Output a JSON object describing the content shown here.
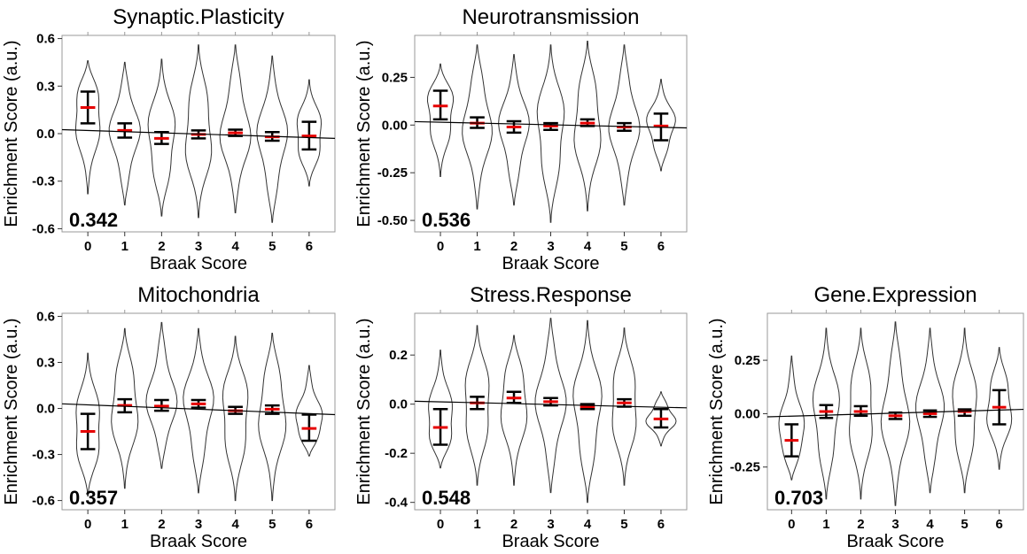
{
  "figure": {
    "xlabel": "Braak Score",
    "ylabel": "Enrichment Score (a.u.)"
  },
  "chart_data": [
    {
      "type": "violin",
      "title": "Synaptic.Plasticity",
      "xlabel": "Braak Score",
      "ylabel": "Enrichment Score (a.u.)",
      "ylim": [
        -0.62,
        0.62
      ],
      "yticks": [
        -0.6,
        -0.3,
        0.0,
        0.3,
        0.6
      ],
      "ytick_labels": [
        "-0.6",
        "-0.3",
        "0.0",
        "0.3",
        "0.6"
      ],
      "categories": [
        "0",
        "1",
        "2",
        "3",
        "4",
        "5",
        "6"
      ],
      "violin_min": [
        -0.38,
        -0.45,
        -0.52,
        -0.53,
        -0.5,
        -0.56,
        -0.33
      ],
      "violin_max": [
        0.46,
        0.45,
        0.47,
        0.56,
        0.56,
        0.49,
        0.34
      ],
      "means": [
        0.165,
        0.02,
        -0.03,
        -0.005,
        0.005,
        -0.02,
        -0.015
      ],
      "ci_low": [
        0.065,
        -0.025,
        -0.065,
        -0.03,
        -0.015,
        -0.045,
        -0.1
      ],
      "ci_high": [
        0.265,
        0.065,
        0.01,
        0.02,
        0.025,
        0.01,
        0.075
      ],
      "trend": [
        0.025,
        -0.03
      ],
      "annotation": "0.342",
      "grid": false
    },
    {
      "type": "violin",
      "title": "Neurotransmission",
      "xlabel": "Braak Score",
      "ylabel": "Enrichment Score (a.u.)",
      "ylim": [
        -0.56,
        0.47
      ],
      "yticks": [
        -0.5,
        -0.25,
        0.0,
        0.25
      ],
      "ytick_labels": [
        "-0.50",
        "-0.25",
        "0.00",
        "0.25"
      ],
      "categories": [
        "0",
        "1",
        "2",
        "3",
        "4",
        "5",
        "6"
      ],
      "violin_min": [
        -0.27,
        -0.44,
        -0.42,
        -0.51,
        -0.45,
        -0.42,
        -0.24
      ],
      "violin_max": [
        0.32,
        0.42,
        0.37,
        0.42,
        0.44,
        0.42,
        0.24
      ],
      "means": [
        0.1,
        0.01,
        -0.01,
        -0.005,
        0.01,
        -0.01,
        -0.005
      ],
      "ci_low": [
        0.03,
        -0.015,
        -0.04,
        -0.025,
        -0.005,
        -0.03,
        -0.08
      ],
      "ci_high": [
        0.18,
        0.04,
        0.02,
        0.01,
        0.03,
        0.01,
        0.06
      ],
      "trend": [
        0.018,
        -0.015
      ],
      "annotation": "0.536",
      "grid": false
    },
    {
      "type": "violin",
      "title": "Mitochondria",
      "xlabel": "Braak Score",
      "ylabel": "Enrichment Score (a.u.)",
      "ylim": [
        -0.66,
        0.62
      ],
      "yticks": [
        -0.6,
        -0.3,
        0.0,
        0.3,
        0.6
      ],
      "ytick_labels": [
        "-0.6",
        "-0.3",
        "0.0",
        "0.3",
        "0.6"
      ],
      "categories": [
        "0",
        "1",
        "2",
        "3",
        "4",
        "5",
        "6"
      ],
      "violin_min": [
        -0.57,
        -0.52,
        -0.39,
        -0.55,
        -0.6,
        -0.6,
        -0.31
      ],
      "violin_max": [
        0.36,
        0.52,
        0.56,
        0.52,
        0.47,
        0.49,
        0.28
      ],
      "means": [
        -0.15,
        0.02,
        0.015,
        0.03,
        -0.015,
        -0.005,
        -0.13
      ],
      "ci_low": [
        -0.265,
        -0.025,
        -0.015,
        0.005,
        -0.035,
        -0.035,
        -0.21
      ],
      "ci_high": [
        -0.035,
        0.06,
        0.055,
        0.055,
        0.01,
        0.02,
        -0.04
      ],
      "trend": [
        0.03,
        -0.04
      ],
      "annotation": "0.357",
      "grid": false
    },
    {
      "type": "violin",
      "title": "Stress.Response",
      "xlabel": "Braak Score",
      "ylabel": "Enrichment Score (a.u.)",
      "ylim": [
        -0.43,
        0.37
      ],
      "yticks": [
        -0.4,
        -0.2,
        0.0,
        0.2
      ],
      "ytick_labels": [
        "-0.4",
        "-0.2",
        "0.0",
        "0.2"
      ],
      "categories": [
        "0",
        "1",
        "2",
        "3",
        "4",
        "5",
        "6"
      ],
      "violin_min": [
        -0.26,
        -0.33,
        -0.33,
        -0.36,
        -0.4,
        -0.33,
        -0.17
      ],
      "violin_max": [
        0.22,
        0.32,
        0.28,
        0.35,
        0.34,
        0.31,
        0.05
      ],
      "means": [
        -0.095,
        0.005,
        0.025,
        0.01,
        -0.01,
        0.005,
        -0.06
      ],
      "ci_low": [
        -0.165,
        -0.02,
        0.005,
        -0.005,
        -0.02,
        -0.01,
        -0.095
      ],
      "ci_high": [
        -0.02,
        0.03,
        0.05,
        0.025,
        0.0,
        0.02,
        -0.02
      ],
      "trend": [
        0.012,
        -0.015
      ],
      "annotation": "0.548",
      "grid": false
    },
    {
      "type": "violin",
      "title": "Gene.Expression",
      "xlabel": "Braak Score",
      "ylabel": "Enrichment Score (a.u.)",
      "ylim": [
        -0.45,
        0.47
      ],
      "yticks": [
        -0.25,
        0.0,
        0.25
      ],
      "ytick_labels": [
        "-0.25",
        "0.00",
        "0.25"
      ],
      "categories": [
        "0",
        "1",
        "2",
        "3",
        "4",
        "5",
        "6"
      ],
      "violin_min": [
        -0.31,
        -0.4,
        -0.4,
        -0.43,
        -0.37,
        -0.37,
        -0.26
      ],
      "violin_max": [
        0.27,
        0.4,
        0.4,
        0.43,
        0.4,
        0.4,
        0.31
      ],
      "means": [
        -0.125,
        0.01,
        0.01,
        -0.01,
        0.0,
        0.01,
        0.03
      ],
      "ci_low": [
        -0.2,
        -0.02,
        -0.01,
        -0.025,
        -0.015,
        -0.01,
        -0.05
      ],
      "ci_high": [
        -0.05,
        0.04,
        0.035,
        0.005,
        0.015,
        0.02,
        0.11
      ],
      "trend": [
        -0.015,
        0.02
      ],
      "annotation": "0.703",
      "grid": false
    }
  ]
}
